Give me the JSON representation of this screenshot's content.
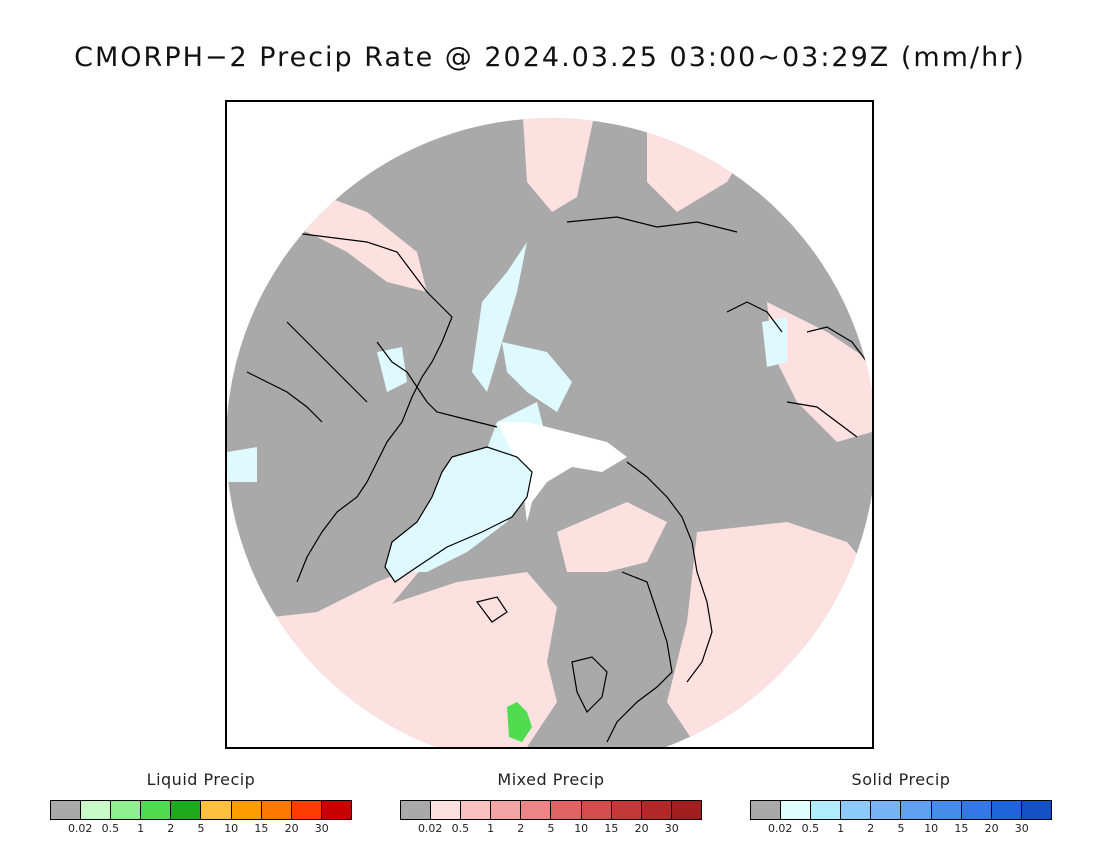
{
  "title": "CMORPH−2 Precip Rate @ 2024.03.25 03:00~03:29Z (mm/hr)",
  "colors": {
    "no_data_gray": "#a9a9a9",
    "snow_fill": "#dffaff",
    "mixed_fill": "#fde0e0",
    "mixed_medium": "#f3a5a5",
    "rain_green": "#4fdc4f",
    "coastline": "#000000"
  },
  "legends": [
    {
      "title": "Liquid Precip",
      "colors": [
        "#a9a9a9",
        "#c8fac8",
        "#8ef08e",
        "#4fdc4f",
        "#1eaa1e",
        "#ffc040",
        "#ff9c00",
        "#ff7800",
        "#ff3c00",
        "#c80000"
      ],
      "ticks": [
        "0.02",
        "0.5",
        "1",
        "2",
        "5",
        "10",
        "15",
        "20",
        "30"
      ]
    },
    {
      "title": "Mixed Precip",
      "colors": [
        "#a9a9a9",
        "#fde0e0",
        "#fbc0c0",
        "#f3a5a5",
        "#ec8585",
        "#e06464",
        "#d44d4d",
        "#c43838",
        "#b22828",
        "#a01e1e"
      ],
      "ticks": [
        "0.02",
        "0.5",
        "1",
        "2",
        "5",
        "10",
        "15",
        "20",
        "30"
      ]
    },
    {
      "title": "Solid Precip",
      "colors": [
        "#a9a9a9",
        "#e0ffff",
        "#b0ecfa",
        "#8ccbf7",
        "#78b4f5",
        "#5fa0f0",
        "#468ceb",
        "#3278e6",
        "#1e64dc",
        "#1450c8"
      ],
      "ticks": [
        "0.02",
        "0.5",
        "1",
        "2",
        "5",
        "10",
        "15",
        "20",
        "30"
      ]
    }
  ]
}
